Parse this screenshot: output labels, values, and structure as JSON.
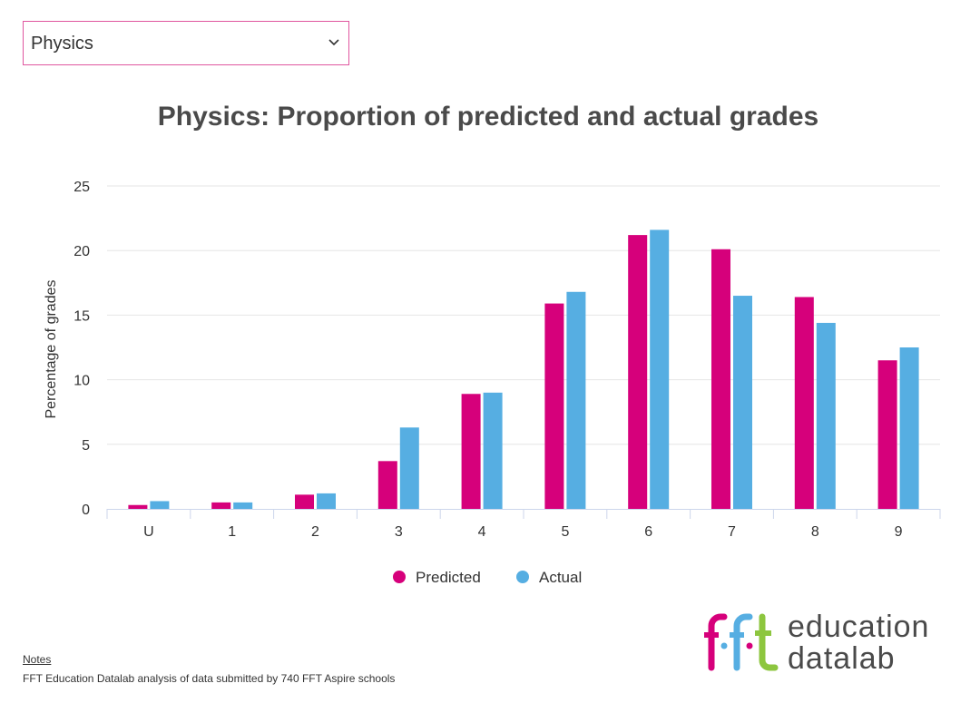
{
  "selector": {
    "value": "Physics"
  },
  "icons": {
    "dropdown": "chevron-down-icon",
    "logo": "fft-logo-icon"
  },
  "colors": {
    "predicted": "#d6007b",
    "actual": "#56aee2",
    "accent": "#e0569f"
  },
  "chart_data": {
    "type": "bar",
    "title": "Physics: Proportion of predicted and actual grades",
    "xlabel": "",
    "ylabel": "Percentage of grades",
    "ylim": [
      0,
      25
    ],
    "yticks": [
      0,
      5,
      10,
      15,
      20,
      25
    ],
    "grid": true,
    "legend": "bottom-center",
    "categories": [
      "U",
      "1",
      "2",
      "3",
      "4",
      "5",
      "6",
      "7",
      "8",
      "9"
    ],
    "series": [
      {
        "name": "Predicted",
        "color": "#d6007b",
        "values": [
          0.3,
          0.5,
          1.1,
          3.7,
          8.9,
          15.9,
          21.2,
          20.1,
          16.4,
          11.5
        ]
      },
      {
        "name": "Actual",
        "color": "#56aee2",
        "values": [
          0.6,
          0.5,
          1.2,
          6.3,
          9.0,
          16.8,
          21.6,
          16.5,
          14.4,
          12.5
        ]
      }
    ]
  },
  "notes": {
    "title": "Notes",
    "text": "FFT Education Datalab analysis of data submitted by 740 FFT Aspire schools"
  },
  "logo": {
    "word1": "education",
    "word2_main": "data",
    "word2_suffix": "lab"
  }
}
